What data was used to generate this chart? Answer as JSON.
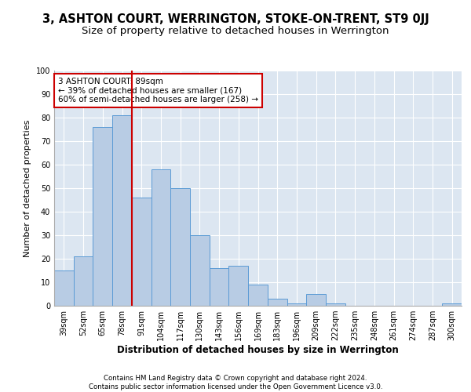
{
  "title": "3, ASHTON COURT, WERRINGTON, STOKE-ON-TRENT, ST9 0JJ",
  "subtitle": "Size of property relative to detached houses in Werrington",
  "xlabel": "Distribution of detached houses by size in Werrington",
  "ylabel": "Number of detached properties",
  "categories": [
    "39sqm",
    "52sqm",
    "65sqm",
    "78sqm",
    "91sqm",
    "104sqm",
    "117sqm",
    "130sqm",
    "143sqm",
    "156sqm",
    "169sqm",
    "183sqm",
    "196sqm",
    "209sqm",
    "222sqm",
    "235sqm",
    "248sqm",
    "261sqm",
    "274sqm",
    "287sqm",
    "300sqm"
  ],
  "values": [
    15,
    21,
    76,
    81,
    46,
    58,
    50,
    30,
    16,
    17,
    9,
    3,
    1,
    5,
    1,
    0,
    0,
    0,
    0,
    0,
    1
  ],
  "bar_color": "#b8cce4",
  "bar_edge_color": "#5b9bd5",
  "vline_x_index": 3.5,
  "vline_color": "#cc0000",
  "annotation_text": "3 ASHTON COURT: 89sqm\n← 39% of detached houses are smaller (167)\n60% of semi-detached houses are larger (258) →",
  "annotation_box_color": "#ffffff",
  "annotation_box_edge": "#cc0000",
  "ylim": [
    0,
    100
  ],
  "yticks": [
    0,
    10,
    20,
    30,
    40,
    50,
    60,
    70,
    80,
    90,
    100
  ],
  "background_color": "#dce6f1",
  "grid_color": "#ffffff",
  "title_fontsize": 10.5,
  "subtitle_fontsize": 9.5,
  "xlabel_fontsize": 8.5,
  "ylabel_fontsize": 8,
  "tick_fontsize": 7,
  "annot_fontsize": 7.5,
  "footer_line1": "Contains HM Land Registry data © Crown copyright and database right 2024.",
  "footer_line2": "Contains public sector information licensed under the Open Government Licence v3.0."
}
